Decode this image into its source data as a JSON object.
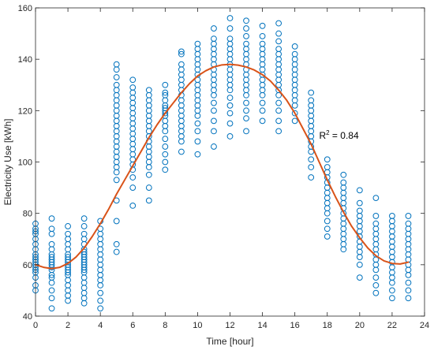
{
  "chart_data": {
    "type": "scatter",
    "title": "",
    "xlabel": "Time [hour]",
    "ylabel": "Electricity Use [kWh]",
    "xlim": [
      0,
      24
    ],
    "ylim": [
      40,
      160
    ],
    "xticks": [
      0,
      2,
      4,
      6,
      8,
      10,
      12,
      14,
      16,
      18,
      20,
      22,
      24
    ],
    "yticks": [
      40,
      60,
      80,
      100,
      120,
      140,
      160
    ],
    "grid": false,
    "annotation": {
      "prefix": "R",
      "exponent": "2",
      "suffix": " = 0.84",
      "x": 17.5,
      "y": 109
    },
    "colors": {
      "markers": "#0072BD",
      "fit": "#D95319",
      "axes": "#262626"
    },
    "series": [
      {
        "kind": "points",
        "hours": [
          0,
          1,
          2,
          3,
          4,
          5,
          6,
          7,
          8,
          9,
          10,
          11,
          12,
          13,
          14,
          15,
          16,
          17,
          18,
          19,
          20,
          21,
          22,
          23
        ],
        "values": [
          [
            50,
            52,
            55,
            57,
            58,
            59,
            60,
            61,
            62,
            63,
            64,
            66,
            68,
            70,
            72,
            73,
            74,
            76
          ],
          [
            43,
            47,
            50,
            53,
            55,
            56,
            58,
            59,
            60,
            61,
            62,
            63,
            64,
            66,
            68,
            72,
            74,
            78
          ],
          [
            46,
            48,
            50,
            52,
            54,
            56,
            57,
            58,
            59,
            60,
            61,
            62,
            63,
            64,
            66,
            68,
            70,
            72,
            75
          ],
          [
            45,
            47,
            49,
            51,
            53,
            55,
            57,
            58,
            59,
            60,
            61,
            62,
            63,
            64,
            65,
            66,
            68,
            70,
            72,
            75,
            78
          ],
          [
            43,
            46,
            49,
            52,
            54,
            56,
            58,
            60,
            62,
            64,
            66,
            68,
            70,
            72,
            74,
            77
          ],
          [
            65,
            68,
            77,
            85,
            93,
            96,
            98,
            100,
            102,
            104,
            106,
            108,
            110,
            112,
            114,
            116,
            118,
            120,
            122,
            124,
            126,
            128,
            130,
            133,
            136,
            138
          ],
          [
            83,
            90,
            94,
            97,
            99,
            101,
            103,
            105,
            107,
            109,
            111,
            113,
            115,
            117,
            119,
            121,
            123,
            125,
            127,
            129,
            132
          ],
          [
            85,
            90,
            95,
            98,
            100,
            102,
            104,
            106,
            108,
            110,
            112,
            114,
            116,
            118,
            120,
            122,
            124,
            126,
            128
          ],
          [
            97,
            100,
            103,
            106,
            109,
            112,
            114,
            116,
            118,
            119,
            120,
            121,
            122,
            124,
            126,
            127,
            130
          ],
          [
            104,
            108,
            110,
            112,
            114,
            116,
            118,
            120,
            122,
            124,
            126,
            128,
            130,
            132,
            134,
            136,
            138,
            142,
            143
          ],
          [
            103,
            108,
            112,
            115,
            118,
            120,
            122,
            124,
            126,
            128,
            130,
            132,
            134,
            136,
            138,
            140,
            142,
            144,
            146
          ],
          [
            106,
            112,
            116,
            120,
            123,
            126,
            128,
            130,
            132,
            134,
            136,
            138,
            140,
            142,
            144,
            146,
            148,
            152
          ],
          [
            110,
            115,
            119,
            122,
            125,
            128,
            130,
            132,
            134,
            136,
            138,
            140,
            142,
            144,
            146,
            148,
            152,
            156
          ],
          [
            112,
            117,
            120,
            123,
            126,
            128,
            130,
            132,
            134,
            136,
            138,
            140,
            142,
            144,
            146,
            149,
            152,
            155
          ],
          [
            116,
            120,
            123,
            126,
            128,
            130,
            132,
            134,
            136,
            138,
            140,
            142,
            144,
            146,
            149,
            153
          ],
          [
            112,
            116,
            120,
            123,
            126,
            128,
            130,
            132,
            134,
            136,
            138,
            140,
            142,
            144,
            147,
            150,
            154
          ],
          [
            116,
            119,
            122,
            124,
            126,
            128,
            130,
            132,
            134,
            136,
            138,
            140,
            142,
            145
          ],
          [
            94,
            98,
            101,
            104,
            106,
            108,
            110,
            112,
            114,
            116,
            118,
            120,
            122,
            124,
            127
          ],
          [
            71,
            74,
            77,
            80,
            82,
            84,
            86,
            88,
            90,
            92,
            94,
            96,
            98,
            101
          ],
          [
            66,
            68,
            70,
            72,
            74,
            76,
            78,
            80,
            82,
            84,
            86,
            88,
            90,
            92,
            95
          ],
          [
            55,
            60,
            63,
            65,
            67,
            69,
            71,
            73,
            75,
            77,
            79,
            81,
            84,
            89
          ],
          [
            49,
            52,
            55,
            58,
            60,
            62,
            64,
            66,
            68,
            70,
            72,
            74,
            76,
            79,
            86
          ],
          [
            47,
            50,
            53,
            55,
            57,
            59,
            61,
            63,
            65,
            67,
            69,
            71,
            73,
            75,
            77,
            79
          ],
          [
            47,
            50,
            53,
            56,
            58,
            60,
            62,
            64,
            66,
            68,
            70,
            72,
            74,
            76,
            79
          ]
        ]
      },
      {
        "kind": "fit",
        "x": [
          0,
          0.5,
          1,
          1.5,
          2,
          2.5,
          3,
          3.5,
          4,
          4.5,
          5,
          5.5,
          6,
          6.5,
          7,
          7.5,
          8,
          8.5,
          9,
          9.5,
          10,
          10.5,
          11,
          11.5,
          12,
          12.5,
          13,
          13.5,
          14,
          14.5,
          15,
          15.5,
          16,
          16.5,
          17,
          17.5,
          18,
          18.5,
          19,
          19.5,
          20,
          20.5,
          21,
          21.5,
          22,
          22.5,
          23
        ],
        "y": [
          60,
          59,
          58.5,
          59,
          60.5,
          63,
          66.5,
          71,
          76,
          81.5,
          87.5,
          93,
          98.5,
          104,
          109.5,
          114.5,
          119,
          123,
          127,
          130.5,
          133.5,
          135.5,
          137,
          137.8,
          138,
          137.7,
          137,
          135.8,
          134,
          131.5,
          128,
          124,
          119,
          113,
          107,
          100,
          93,
          86.5,
          80.5,
          75,
          70.5,
          66.5,
          63.5,
          61.5,
          60.5,
          60.3,
          61
        ]
      }
    ]
  }
}
